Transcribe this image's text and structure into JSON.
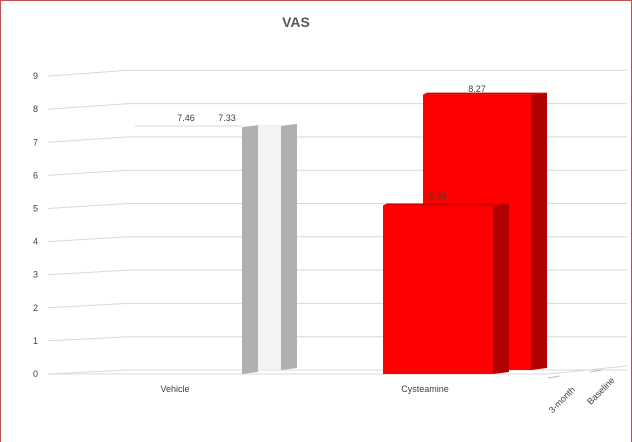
{
  "chart_data": {
    "type": "bar",
    "title": "VAS",
    "categories": [
      "Vehicle",
      "Cysteamine"
    ],
    "series": [
      {
        "name": "3-month",
        "values": [
          7.46,
          5.09
        ],
        "data_labels": [
          "7.46",
          "5.09"
        ]
      },
      {
        "name": "Baseline",
        "values": [
          7.33,
          8.27
        ],
        "data_labels": [
          "7.33",
          "8.27"
        ]
      }
    ],
    "series_colors": {
      "Vehicle": {
        "front": "#ffffff",
        "side": "#b0b0b0"
      },
      "Cysteamine": {
        "front": "#ff0000",
        "side": "#b00000",
        "top": "#d40000"
      }
    },
    "yticks": [
      "0",
      "1",
      "2",
      "3",
      "4",
      "5",
      "6",
      "7",
      "8",
      "9"
    ],
    "ylim": [
      0,
      9
    ],
    "grid": true,
    "three_d": true
  }
}
